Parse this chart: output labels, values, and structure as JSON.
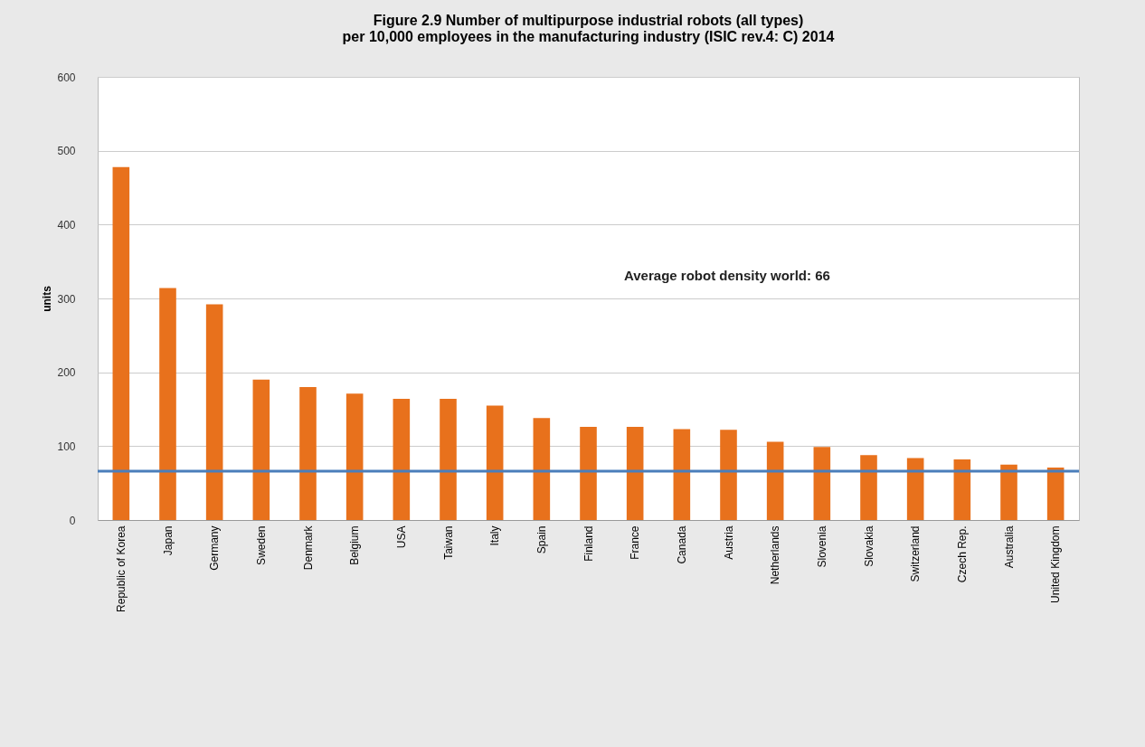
{
  "chart_data": {
    "type": "bar",
    "title": "Figure 2.9 Number of multipurpose industrial robots (all types)\nper 10,000 employees in the manufacturing industry (ISIC rev.4: C) 2014",
    "ylabel": "units",
    "categories": [
      "Republic of Korea",
      "Japan",
      "Germany",
      "Sweden",
      "Denmark",
      "Belgium",
      "USA",
      "Taiwan",
      "Italy",
      "Spain",
      "Finland",
      "France",
      "Canada",
      "Austria",
      "Netherlands",
      "Slovenia",
      "Slovakia",
      "Switzerland",
      "Czech Rep.",
      "Australia",
      "United Kingdom"
    ],
    "values": [
      478,
      314,
      292,
      190,
      180,
      171,
      164,
      164,
      155,
      138,
      126,
      126,
      123,
      122,
      106,
      99,
      88,
      84,
      82,
      75,
      71
    ],
    "color": "#e8711c",
    "ylim": [
      0,
      600
    ],
    "yticks": [
      0,
      100,
      200,
      300,
      400,
      500,
      600
    ],
    "grid": "y",
    "annotations": [
      "Average robot density world: 66"
    ],
    "ref_lines": [
      {
        "axis": "y",
        "value": 66,
        "color": "#4a7ebb"
      }
    ]
  }
}
